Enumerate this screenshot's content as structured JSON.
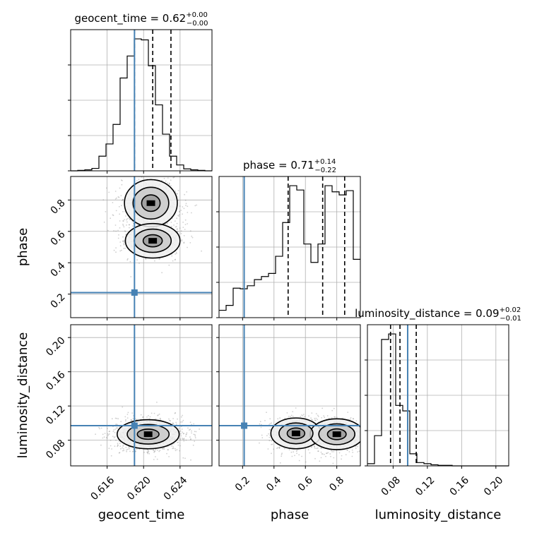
{
  "chart_data": {
    "type": "corner",
    "parameters": [
      "geocent_time",
      "phase",
      "luminosity_distance"
    ],
    "truths": {
      "geocent_time": 0.619,
      "phase": 0.21,
      "luminosity_distance": 0.097
    },
    "accent_color": "#4682b4",
    "grid": true,
    "axes": {
      "geocent_time": {
        "range": [
          0.612,
          0.6275
        ],
        "ticks": [
          0.616,
          0.62,
          0.624
        ],
        "tick_labels": [
          "0.616",
          "0.620",
          "0.624"
        ],
        "label": "geocent_time"
      },
      "phase": {
        "range": [
          0.05,
          0.95
        ],
        "ticks": [
          0.2,
          0.4,
          0.6,
          0.8
        ],
        "tick_labels": [
          "0.2",
          "0.4",
          "0.6",
          "0.8"
        ],
        "label": "phase"
      },
      "luminosity_distance": {
        "range": [
          0.05,
          0.215
        ],
        "ticks": [
          0.08,
          0.12,
          0.16,
          0.2
        ],
        "tick_labels": [
          "0.08",
          "0.12",
          "0.16",
          "0.20"
        ],
        "label": "luminosity_distance"
      }
    },
    "marginals": [
      {
        "parameter": "geocent_time",
        "title_main": "geocent_time = 0.62",
        "title_sup": "+0.00",
        "title_sub": "−0.00",
        "quantiles": [
          0.619,
          0.621,
          0.623
        ],
        "hist_values": [
          0,
          1,
          2,
          5,
          30,
          55,
          95,
          190,
          235,
          270,
          268,
          215,
          135,
          75,
          30,
          12,
          4,
          2,
          1,
          0
        ]
      },
      {
        "parameter": "phase",
        "title_main": "phase = 0.71",
        "title_sup": "+0.14",
        "title_sub": "−0.22",
        "quantiles": [
          0.49,
          0.71,
          0.85
        ],
        "hist_values": [
          12,
          20,
          48,
          47,
          52,
          62,
          67,
          72,
          100,
          155,
          215,
          208,
          120,
          90,
          120,
          215,
          205,
          200,
          207,
          95
        ]
      },
      {
        "parameter": "luminosity_distance",
        "title_main": "luminosity_distance = 0.09",
        "title_sup": "+0.02",
        "title_sub": "−0.01",
        "quantiles": [
          0.077,
          0.088,
          0.107
        ],
        "hist_values": [
          4,
          55,
          230,
          240,
          110,
          100,
          22,
          6,
          4,
          2,
          1,
          1,
          0,
          0,
          0,
          0,
          0,
          0,
          0,
          0
        ]
      }
    ],
    "pairs": [
      {
        "x": "geocent_time",
        "y": "phase",
        "modes": [
          {
            "x": 0.6208,
            "y": 0.78,
            "sx": 0.00145,
            "sy": 0.075,
            "w": 0.62
          },
          {
            "x": 0.621,
            "y": 0.54,
            "sx": 0.0015,
            "sy": 0.055,
            "w": 0.38
          }
        ]
      },
      {
        "x": "geocent_time",
        "y": "luminosity_distance",
        "modes": [
          {
            "x": 0.6205,
            "y": 0.087,
            "sx": 0.0017,
            "sy": 0.0085,
            "w": 1
          }
        ]
      },
      {
        "x": "phase",
        "y": "luminosity_distance",
        "modes": [
          {
            "x": 0.54,
            "y": 0.088,
            "sx": 0.08,
            "sy": 0.009,
            "w": 0.4
          },
          {
            "x": 0.8,
            "y": 0.087,
            "sx": 0.085,
            "sy": 0.009,
            "w": 0.6
          }
        ]
      }
    ]
  }
}
